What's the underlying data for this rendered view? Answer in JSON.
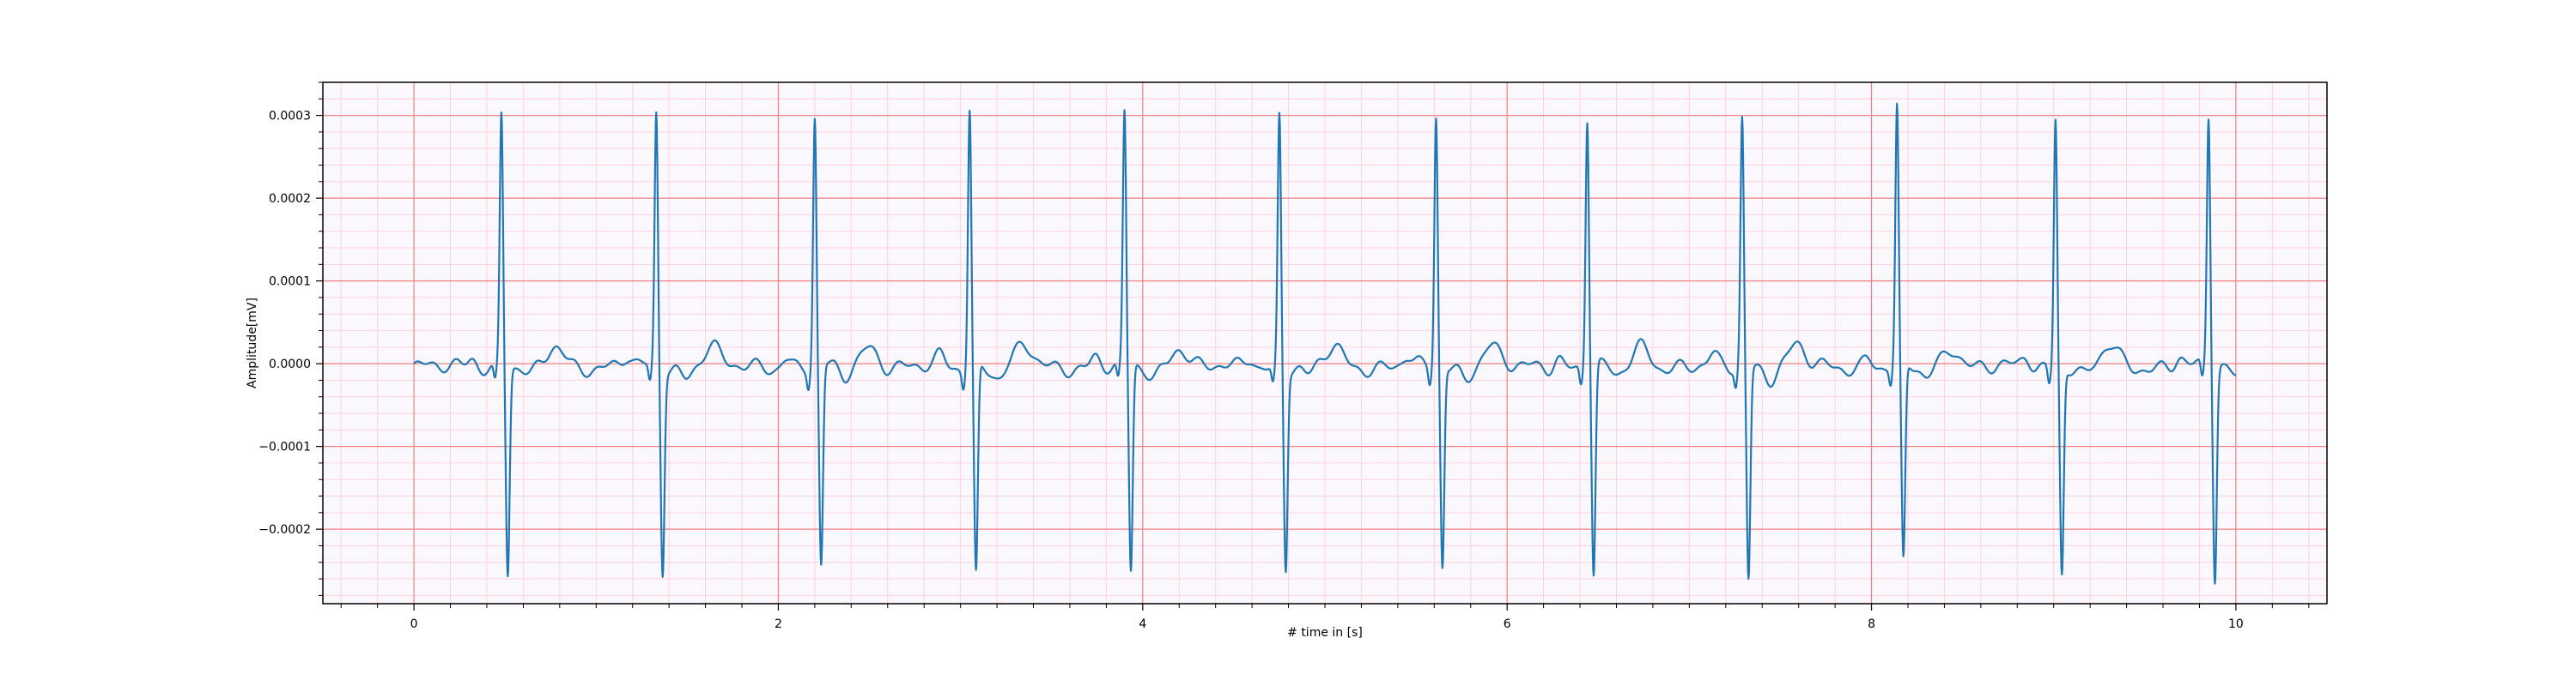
{
  "chart_data": {
    "type": "line",
    "title": "",
    "xlabel": "# time in [s]",
    "ylabel": "Amplitude[mV]",
    "xlim": [
      -0.5,
      10.5
    ],
    "ylim": [
      -0.00029,
      0.00034
    ],
    "x_ticks": [
      0,
      2,
      4,
      6,
      8,
      10
    ],
    "x_tick_labels": [
      "0",
      "2",
      "4",
      "6",
      "8",
      "10"
    ],
    "y_ticks": [
      -0.0002,
      -0.0001,
      0.0,
      0.0001,
      0.0002,
      0.0003
    ],
    "y_tick_labels": [
      "−0.0002",
      "−0.0001",
      "0.0000",
      "0.0001",
      "0.0002",
      "0.0003"
    ],
    "grid": "on",
    "colors": {
      "line": "#1f77b4",
      "major_grid": "#f08080",
      "minor_grid": "#ffd1dc",
      "background": "#fbf8fd"
    },
    "series": [
      {
        "beats": [
          {
            "t": 0.48,
            "r": 0.000307,
            "s": -0.000248
          },
          {
            "t": 1.33,
            "r": 0.000306,
            "s": -0.000245
          },
          {
            "t": 2.2,
            "r": 0.0003,
            "s": -0.000243
          },
          {
            "t": 3.05,
            "r": 0.000314,
            "s": -0.000252
          },
          {
            "t": 3.9,
            "r": 0.000304,
            "s": -0.00025
          },
          {
            "t": 4.75,
            "r": 0.000304,
            "s": -0.00024
          },
          {
            "t": 5.61,
            "r": 0.000303,
            "s": -0.00024
          },
          {
            "t": 6.44,
            "r": 0.000304,
            "s": -0.00025
          },
          {
            "t": 7.29,
            "r": 0.000302,
            "s": -0.000255
          },
          {
            "t": 8.14,
            "r": 0.00031,
            "s": -0.00024
          },
          {
            "t": 9.01,
            "r": 0.000302,
            "s": -0.000248
          },
          {
            "t": 9.85,
            "r": 0.000302,
            "s": -0.000255
          }
        ]
      }
    ]
  }
}
